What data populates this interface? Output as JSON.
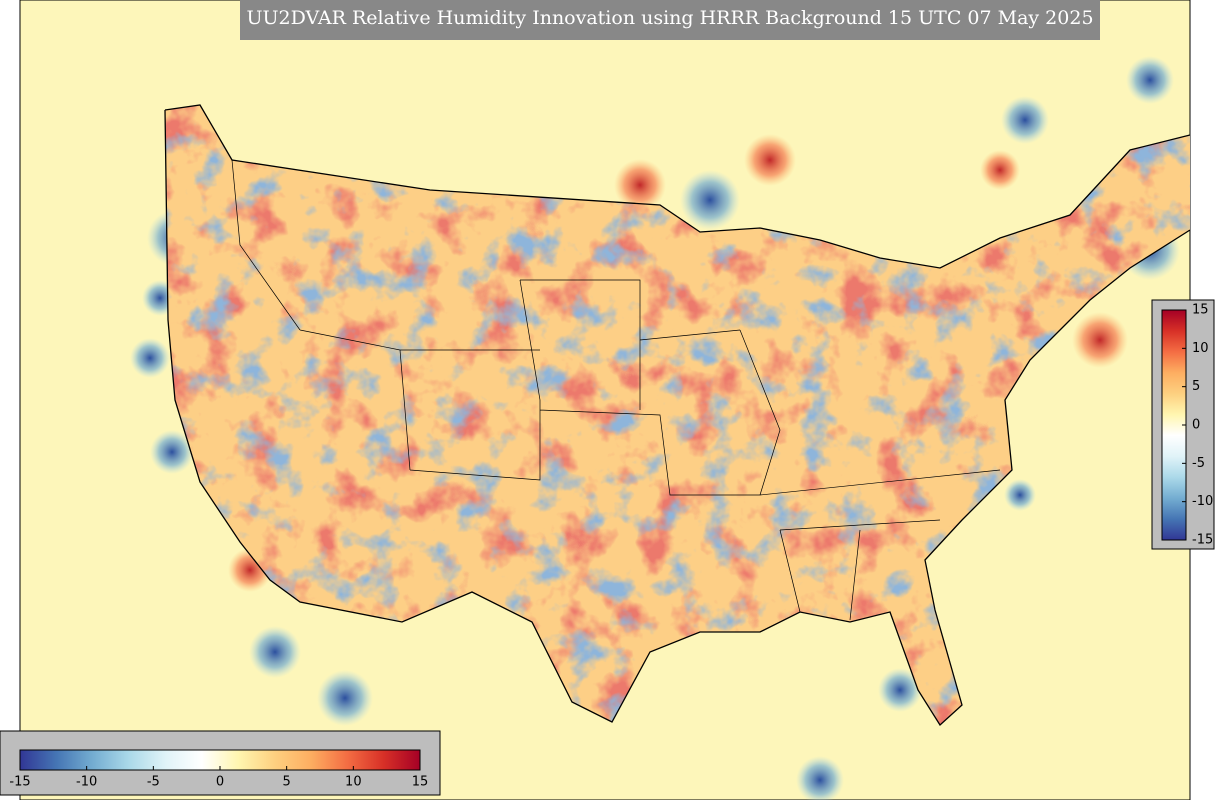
{
  "title": "UU2DVAR Relative Humidity Innovation using HRRR Background 15 UTC 07 May 2025",
  "colormap": [
    "#313695",
    "#4575b4",
    "#74add1",
    "#abd9e9",
    "#e0f3f8",
    "#ffffff",
    "#fff6b0",
    "#fdd080",
    "#fdae61",
    "#f46d43",
    "#d73027",
    "#a50026"
  ],
  "colorbar_bottom": {
    "range": [
      -15,
      15
    ],
    "ticks": [
      -15,
      -10,
      -5,
      0,
      5,
      10,
      15
    ]
  },
  "colorbar_right": {
    "range": [
      -15,
      15
    ],
    "ticks": [
      15,
      10,
      5,
      0,
      -5,
      -10,
      -15
    ]
  }
}
